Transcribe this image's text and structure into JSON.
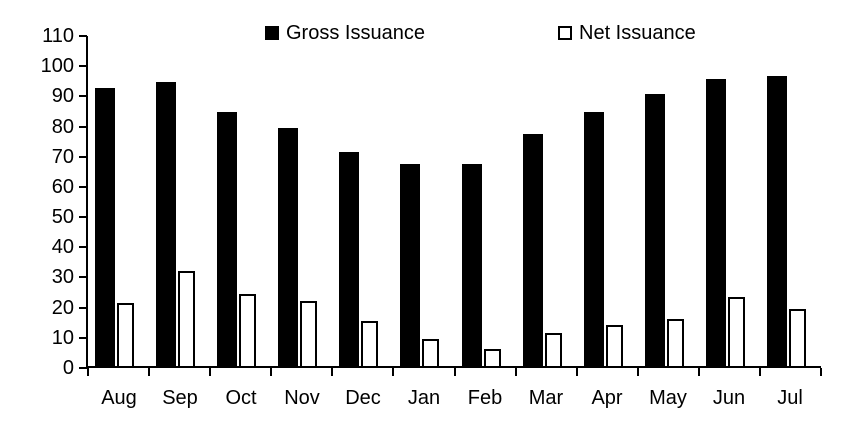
{
  "chart_data": {
    "type": "bar",
    "categories": [
      "Aug",
      "Sep",
      "Oct",
      "Nov",
      "Dec",
      "Jan",
      "Feb",
      "Mar",
      "Apr",
      "May",
      "Jun",
      "Jul"
    ],
    "series": [
      {
        "name": "Gross Issuance",
        "values": [
          92,
          94,
          84,
          79,
          71,
          67,
          67,
          77,
          84,
          90,
          95,
          96
        ]
      },
      {
        "name": "Net Issuance",
        "values": [
          21,
          31.5,
          24,
          21.5,
          15,
          9,
          5.5,
          11,
          13.5,
          15.5,
          23,
          19
        ]
      }
    ],
    "title": "",
    "xlabel": "",
    "ylabel": "",
    "ylim": [
      0,
      110
    ],
    "ytick_step": 10,
    "ytick_labels": [
      "0",
      "10",
      "20",
      "30",
      "40",
      "50",
      "60",
      "70",
      "80",
      "90",
      "100",
      "110"
    ],
    "grid": false,
    "legend_position": "top"
  },
  "legend": {
    "gross_label": "Gross Issuance",
    "net_label": "Net Issuance"
  },
  "colors": {
    "gross_fill": "#000000",
    "net_fill": "#ffffff",
    "net_stroke": "#000000",
    "axis": "#000000",
    "text": "#000000",
    "background": "#ffffff"
  }
}
